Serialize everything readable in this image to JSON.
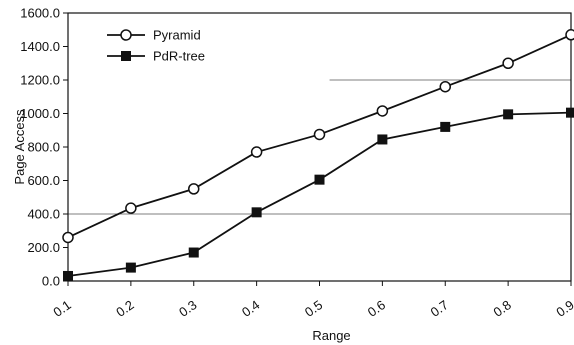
{
  "chart_data": {
    "type": "line",
    "title": "",
    "xlabel": "Range",
    "ylabel": "Page Access",
    "x": [
      0.1,
      0.2,
      0.3,
      0.4,
      0.5,
      0.6,
      0.7,
      0.8,
      0.9
    ],
    "x_tick_labels": [
      "0.1",
      "0.2",
      "0.3",
      "0.4",
      "0.5",
      "0.6",
      "0.7",
      "0.8",
      "0.9"
    ],
    "y_ticks": [
      0,
      200,
      400,
      600,
      800,
      1000,
      1200,
      1400,
      1600
    ],
    "y_tick_labels": [
      "0.0",
      "200.0",
      "400.0",
      "600.0",
      "800.0",
      "1000.0",
      "1200.0",
      "1400.0",
      "1600.0"
    ],
    "ylim": [
      0,
      1600
    ],
    "xlim": [
      0.1,
      0.9
    ],
    "grid": "partial horizontal lines",
    "legend_position": "top-left",
    "series": [
      {
        "name": "Pyramid",
        "marker": "open-circle",
        "color": "#111111",
        "values": [
          260,
          435,
          550,
          770,
          875,
          1015,
          1160,
          1300,
          1470
        ]
      },
      {
        "name": "PdR-tree",
        "marker": "filled-square",
        "color": "#111111",
        "values": [
          30,
          80,
          170,
          410,
          605,
          845,
          920,
          995,
          1005
        ]
      }
    ]
  }
}
